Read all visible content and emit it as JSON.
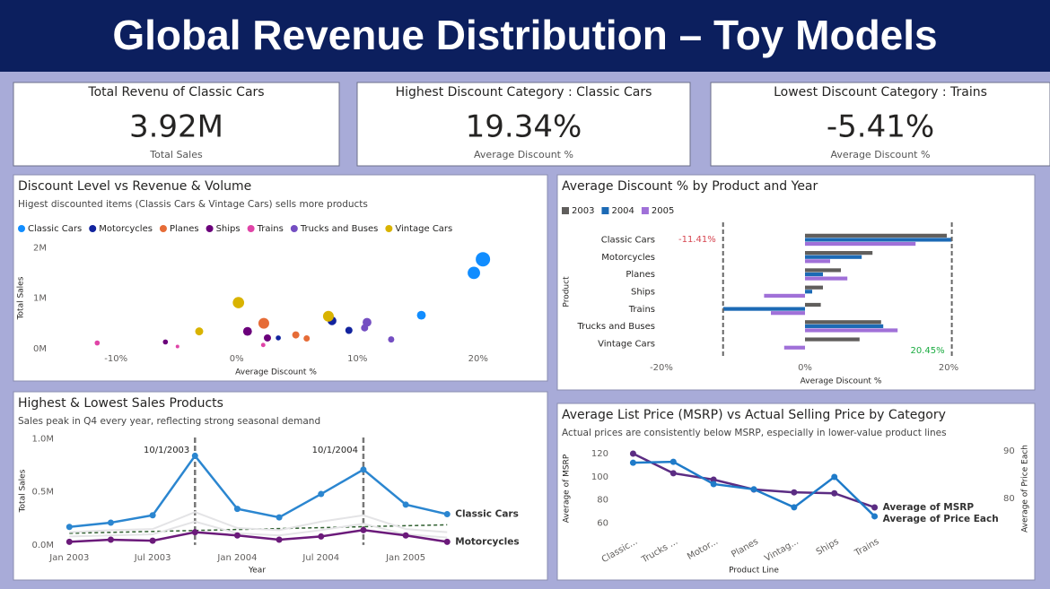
{
  "header": {
    "title": "Global Revenue Distribution – Toy Models"
  },
  "kpis": [
    {
      "title": "Total Revenu of Classic Cars",
      "value": "3.92M",
      "label": "Total Sales"
    },
    {
      "title": "Highest Discount Category : Classic Cars",
      "value": "19.34%",
      "label": "Average Discount %"
    },
    {
      "title": "Lowest Discount Category : Trains",
      "value": "-5.41%",
      "label": "Average Discount %"
    }
  ],
  "chart_data": [
    {
      "type": "scatter",
      "title": "Discount Level vs Revenue & Volume",
      "subtitle": "Higest discounted items (Classis Cars & Vintage Cars) sells more products",
      "x_label": "Average Discount %",
      "y_label": "Total Sales",
      "xlim": [
        -17,
        25
      ],
      "xticks": [
        {
          "value": -10,
          "label": "-10%"
        },
        {
          "value": 0,
          "label": "0%"
        },
        {
          "value": 10,
          "label": "10%"
        },
        {
          "value": 20,
          "label": "20%"
        }
      ],
      "ylim": [
        -200000,
        2200000
      ],
      "yticks": [
        {
          "value": 0,
          "label": "0M"
        },
        {
          "value": 1000000,
          "label": "1M"
        },
        {
          "value": 2000000,
          "label": "2M"
        }
      ],
      "series": [
        {
          "name": "Classic Cars",
          "color": "#118dff",
          "x": [
            20.4,
            19.65,
            15.3
          ],
          "values": [
            1770000,
            1500000,
            660000
          ],
          "sizes": [
            16,
            12,
            6
          ]
        },
        {
          "name": "Motorcycles",
          "color": "#12239e",
          "x": [
            7.9,
            9.3,
            3.45
          ],
          "values": [
            550000,
            360000,
            210000
          ],
          "sizes": [
            6,
            4,
            2
          ]
        },
        {
          "name": "Planes",
          "color": "#e66c37",
          "x": [
            2.25,
            4.9,
            5.8
          ],
          "values": [
            500000,
            270000,
            200000
          ],
          "sizes": [
            9,
            4,
            3
          ]
        },
        {
          "name": "Ships",
          "color": "#6b007b",
          "x": [
            0.9,
            -5.9,
            2.55
          ],
          "values": [
            340000,
            130000,
            210000
          ],
          "sizes": [
            6,
            2,
            4
          ]
        },
        {
          "name": "Trains",
          "color": "#e044a7",
          "x": [
            -11.55,
            -4.9,
            2.2
          ],
          "values": [
            110000,
            40000,
            70000
          ],
          "sizes": [
            2,
            1,
            1.5
          ]
        },
        {
          "name": "Trucks and Buses",
          "color": "#744ec2",
          "x": [
            10.8,
            10.6,
            12.8
          ],
          "values": [
            520000,
            410000,
            180000
          ],
          "sizes": [
            6,
            4,
            3
          ]
        },
        {
          "name": "Vintage Cars",
          "color": "#d9b300",
          "x": [
            0.15,
            7.6,
            -3.1
          ],
          "values": [
            910000,
            640000,
            340000
          ],
          "sizes": [
            10,
            9,
            5
          ]
        }
      ]
    },
    {
      "type": "bar",
      "title": "Average Discount % by Product and Year",
      "x_label": "Average Discount %",
      "y_label": "Product",
      "categories": [
        "Classic Cars",
        "Motorcycles",
        "Planes",
        "Ships",
        "Trains",
        "Trucks and Buses",
        "Vintage Cars"
      ],
      "xlim": [
        -28,
        24
      ],
      "xticks": [
        {
          "value": -20,
          "label": "-20%"
        },
        {
          "value": 0,
          "label": "0%"
        },
        {
          "value": 20,
          "label": "20%"
        }
      ],
      "series": [
        {
          "name": "2003",
          "color": "#605e5c",
          "values": [
            19.75,
            9.4,
            5.0,
            2.5,
            2.2,
            10.6,
            7.6
          ]
        },
        {
          "name": "2004",
          "color": "#1c6ab5",
          "values": [
            20.45,
            7.9,
            2.5,
            1.0,
            -11.41,
            10.9,
            null
          ]
        },
        {
          "name": "2005",
          "color": "#a070d8",
          "values": [
            15.4,
            3.5,
            5.9,
            -5.7,
            -4.75,
            12.9,
            -2.9
          ]
        }
      ],
      "reference_lines": [
        {
          "value": -11.41,
          "label": "-11.41%",
          "color": "#d64550"
        },
        {
          "value": 20.45,
          "label": "20.45%",
          "color": "#1aab40"
        }
      ]
    },
    {
      "type": "line",
      "title": "Highest & Lowest Sales Products",
      "subtitle": "Sales peak in Q4 every year, reflecting strong seasonal demand",
      "x_label": "Year",
      "y_label": "Total Sales",
      "x": [
        "2003-01-01",
        "2003-04-01",
        "2003-07-01",
        "2003-10-01",
        "2004-01-01",
        "2004-04-01",
        "2004-07-01",
        "2004-10-01",
        "2005-01-01",
        "2005-04-01"
      ],
      "xlim": [
        "2002-12-08",
        "2005-04-20"
      ],
      "xticks": [
        {
          "value": "2003-01-01",
          "label": "Jan 2003"
        },
        {
          "value": "2003-07-01",
          "label": "Jul 2003"
        },
        {
          "value": "2004-01-01",
          "label": "Jan 2004"
        },
        {
          "value": "2004-07-01",
          "label": "Jul 2004"
        },
        {
          "value": "2005-01-01",
          "label": "Jan 2005"
        }
      ],
      "ylim": [
        -60000,
        1080000
      ],
      "yticks": [
        {
          "value": 0,
          "label": "0.0M"
        },
        {
          "value": 500000,
          "label": "0.5M"
        },
        {
          "value": 1000000,
          "label": "1.0M"
        }
      ],
      "series": [
        {
          "color": "#e4e4e6",
          "values": [
            120000,
            140000,
            150000,
            310000,
            160000,
            140000,
            220000,
            280000,
            150000,
            120000
          ]
        },
        {
          "color": "#e4e4e6",
          "values": [
            80000,
            90000,
            100000,
            220000,
            110000,
            90000,
            140000,
            200000,
            100000,
            70000
          ]
        },
        {
          "name": "Classic Cars",
          "color": "#2b86d0",
          "values": [
            170000,
            210000,
            280000,
            840000,
            340000,
            260000,
            480000,
            710000,
            380000,
            290000
          ]
        },
        {
          "name": "Motorcycles",
          "color": "#6b1a7a",
          "values": [
            30000,
            50000,
            40000,
            120000,
            90000,
            50000,
            80000,
            140000,
            90000,
            30000
          ]
        }
      ],
      "trend_line": {
        "color": "#2f5f2f",
        "values": [
          110000,
          190000
        ]
      },
      "annotations": [
        {
          "x": "2003-10-01",
          "label": "10/1/2003"
        },
        {
          "x": "2004-10-01",
          "label": "10/1/2004"
        }
      ]
    },
    {
      "type": "line",
      "title": "Average List Price (MSRP) vs Actual Selling Price by Category",
      "subtitle": "Actual prices are consistently below MSRP, especially in lower-value product lines",
      "x_label": "Product Line",
      "y_label": "Average of MSRP",
      "y2_label": "Average of Price Each",
      "categories": [
        "Classic...",
        "Trucks ...",
        "Motor...",
        "Planes",
        "Vintag...",
        "Ships",
        "Trains"
      ],
      "ylim": [
        51,
        128.5
      ],
      "yticks": [
        60,
        80,
        100,
        120
      ],
      "y2lim": [
        72.6,
        91.5
      ],
      "y2ticks": [
        80,
        90
      ],
      "series": [
        {
          "name": "Average of MSRP",
          "color": "#5b2c83",
          "values": [
            120,
            103,
            97.5,
            89,
            86.5,
            85.7,
            73.5
          ]
        },
        {
          "name": "Average of Price Each",
          "color": "#1f7bc9",
          "axis": "y2",
          "values": [
            87.5,
            87.7,
            83.0,
            81.9,
            78.1,
            84.5,
            76.2
          ]
        }
      ]
    }
  ]
}
